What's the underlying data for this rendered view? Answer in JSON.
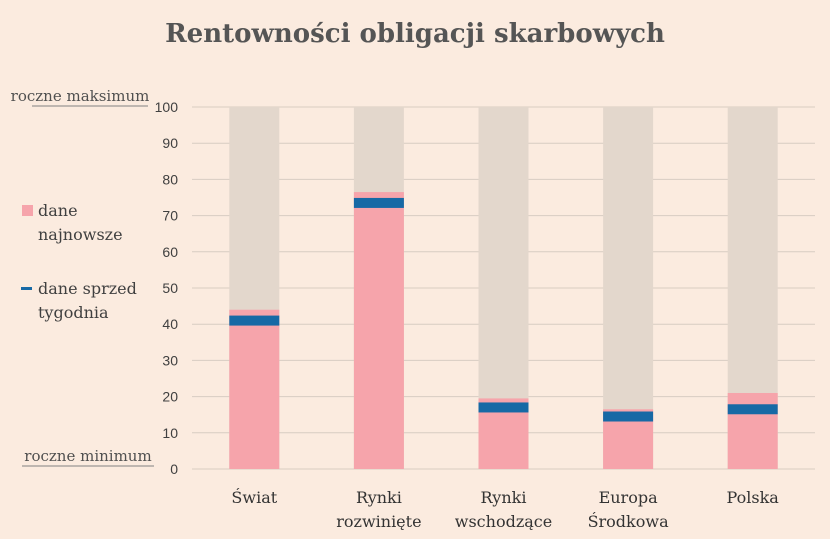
{
  "chart_data": {
    "type": "bar",
    "title": "Rentowności obligacji skarbowych",
    "categories": [
      [
        "Świat"
      ],
      [
        "Rynki",
        "rozwinięte"
      ],
      [
        "Rynki",
        "wschodzące"
      ],
      [
        "Europa",
        "Środkowa"
      ],
      [
        "Polska"
      ]
    ],
    "series": [
      {
        "name": "dane najnowsze",
        "values": [
          44,
          76.5,
          19.5,
          16.5,
          21
        ]
      },
      {
        "name": "dane sprzed tygodnia",
        "values": [
          41,
          73.5,
          17,
          14.5,
          16.5
        ]
      }
    ],
    "ylim": [
      0,
      100
    ],
    "yticks": [
      0,
      10,
      20,
      30,
      40,
      50,
      60,
      70,
      80,
      90,
      100
    ],
    "range_labels": {
      "max": "roczne maksimum",
      "min": "roczne minimum"
    },
    "legend": {
      "placement": "left",
      "items": [
        {
          "lines": [
            "dane",
            "najnowsze"
          ],
          "color": "#f6a4ab",
          "marker": "square"
        },
        {
          "lines": [
            "dane sprzed",
            "tygodnia"
          ],
          "color": "#1769a5",
          "marker": "dash"
        }
      ]
    },
    "grid": true,
    "colors": {
      "background_bar": "#e3d7cc",
      "latest": "#f6a4ab",
      "week_ago": "#1769a5",
      "grid": "#d8ccc2"
    }
  }
}
